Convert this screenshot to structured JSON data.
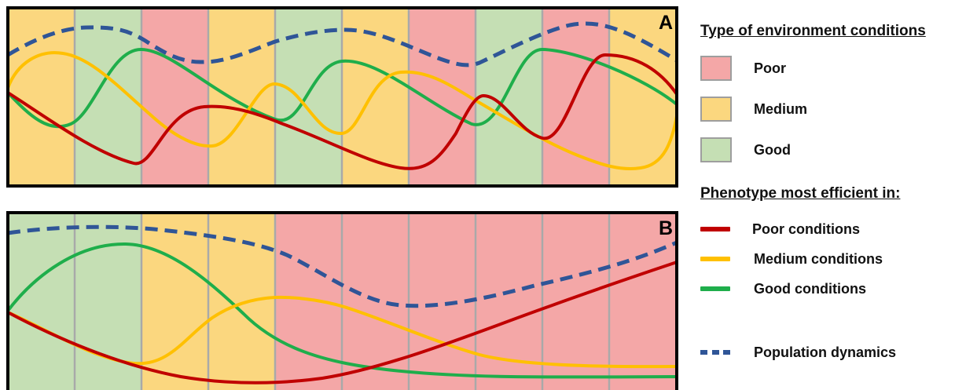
{
  "colors": {
    "poor_bg": "#f4a7a7",
    "medium_bg": "#fbd77f",
    "good_bg": "#c5dfb4",
    "separator": "#a9a9a9",
    "poor_line": "#c00000",
    "medium_line": "#ffc000",
    "good_line": "#1fae4b",
    "population_line": "#2f5597"
  },
  "panels": [
    {
      "label": "A",
      "columns": [
        "medium",
        "good",
        "poor",
        "medium",
        "good",
        "medium",
        "poor",
        "good",
        "poor",
        "medium"
      ]
    },
    {
      "label": "B",
      "columns": [
        "good",
        "good",
        "medium",
        "medium",
        "poor",
        "poor",
        "poor",
        "poor",
        "poor",
        "poor"
      ]
    }
  ],
  "legend": {
    "conditions_title": "Type of environment conditions",
    "conditions": [
      {
        "label": "Poor",
        "color_key": "poor_bg"
      },
      {
        "label": "Medium",
        "color_key": "medium_bg"
      },
      {
        "label": "Good",
        "color_key": "good_bg"
      }
    ],
    "phenotype_title": "Phenotype most efficient in:",
    "phenotypes": [
      {
        "label": "Poor conditions",
        "color_key": "poor_line"
      },
      {
        "label": "Medium conditions",
        "color_key": "medium_line"
      },
      {
        "label": "Good conditions",
        "color_key": "good_line"
      }
    ],
    "population_label": "Population dynamics"
  }
}
